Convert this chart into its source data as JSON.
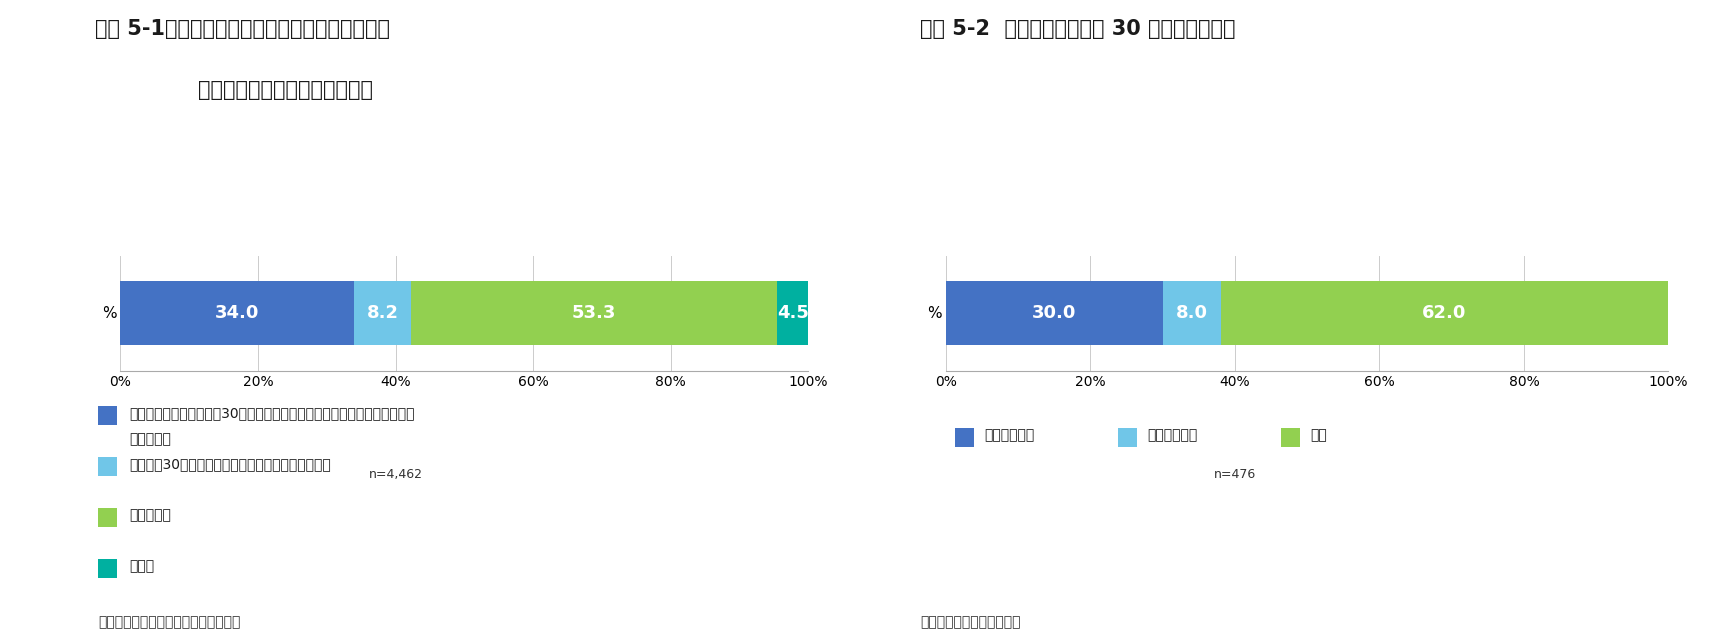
{
  "chart1": {
    "title_line1": "図表 5-1　相続税納税猶予制度の適用を受けてい",
    "title_line2": "ない生産緑地の今後の利用意向",
    "ylabel": "%",
    "n_label": "n=4,462",
    "values": [
      34.0,
      8.2,
      53.3,
      4.5
    ],
    "colors": [
      "#4472C4",
      "#70C6E8",
      "#92D050",
      "#00B0A0"
    ],
    "labels_in_bar": [
      "34.0",
      "8.2",
      "53.3",
      "4.5"
    ],
    "legend_items": [
      {
        "text1": "現在のところ、指定から30年経過後も生産緑地を継続し、農地として利用",
        "text2": "するつもり",
        "color": "#4472C4"
      },
      {
        "text1": "指定から30年経過後、すぐ区市へ買取り申出したい",
        "text2": null,
        "color": "#70C6E8"
      },
      {
        "text1": "わからない",
        "text2": null,
        "color": "#92D050"
      },
      {
        "text1": "その他",
        "text2": null,
        "color": "#00B0A0"
      }
    ],
    "source": "（資料）東京都産業労働局農林水産部"
  },
  "chart2": {
    "title": "図表 5-2  生産緑地指定から 30 年経過後の意向",
    "ylabel": "%",
    "n_label": "n=476",
    "values": [
      30.0,
      8.0,
      62.0
    ],
    "colors": [
      "#4472C4",
      "#70C6E8",
      "#92D050"
    ],
    "labels_in_bar": [
      "30.0",
      "8.0",
      "62.0"
    ],
    "legend_items": [
      {
        "text": "農業を続ける",
        "color": "#4472C4"
      },
      {
        "text": "買取申出する",
        "color": "#70C6E8"
      },
      {
        "text": "未定",
        "color": "#92D050"
      }
    ],
    "source": "（資料）兵庫県総合農政課"
  },
  "background_color": "#FFFFFF",
  "font_size_title": 15,
  "font_size_bar_label": 13,
  "font_size_axis": 10,
  "font_size_legend": 10,
  "font_size_source": 10,
  "font_size_n": 9,
  "font_size_ylabel": 11
}
